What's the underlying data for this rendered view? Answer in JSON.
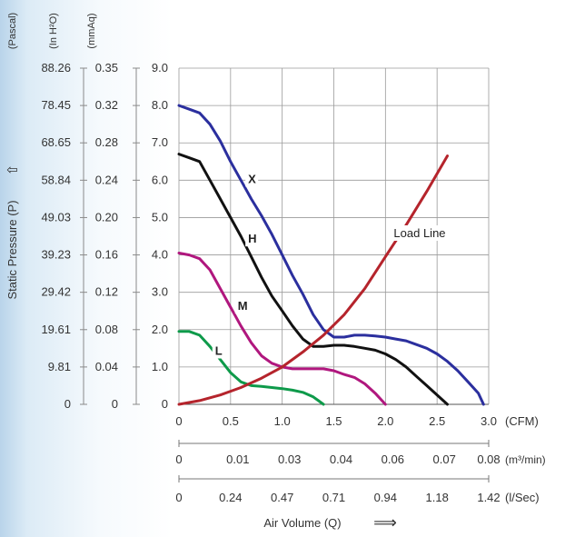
{
  "chart_data": {
    "type": "line",
    "title": "",
    "pressure_axes": [
      {
        "unit": "(Pascal)",
        "ticks": [
          "0",
          "9.81",
          "19.61",
          "29.42",
          "39.23",
          "49.03",
          "58.84",
          "68.65",
          "78.45",
          "88.26"
        ]
      },
      {
        "unit": "(In H²O)",
        "ticks": [
          "0",
          "0.04",
          "0.08",
          "0.12",
          "0.16",
          "0.20",
          "0.24",
          "0.28",
          "0.32",
          "0.35"
        ]
      },
      {
        "unit": "(mmAq)",
        "ticks": [
          "0",
          "1.0",
          "2.0",
          "3.0",
          "4.0",
          "5.0",
          "6.0",
          "7.0",
          "8.0",
          "9.0"
        ]
      }
    ],
    "ylabel": "Static Pressure (P)",
    "ylabel_arrow": "⇧",
    "ylim": [
      0,
      9
    ],
    "xlim": [
      0,
      3.0
    ],
    "flow_axes": [
      {
        "unit": "(CFM)",
        "ticks": [
          "0",
          "0.5",
          "1.0",
          "1.5",
          "2.0",
          "2.5",
          "3.0"
        ]
      },
      {
        "unit": "(m³/min)",
        "ticks": [
          "0",
          "0.01",
          "0.03",
          "0.04",
          "0.06",
          "0.07",
          "0.08"
        ]
      },
      {
        "unit": "(l/Sec)",
        "ticks": [
          "0",
          "0.24",
          "0.47",
          "0.71",
          "0.94",
          "1.18",
          "1.42"
        ]
      }
    ],
    "xlabel": "Air Volume (Q)",
    "xlabel_arrow": "⟹",
    "grid": true,
    "series": [
      {
        "name": "X",
        "color": "#2b2f9e",
        "x": [
          0,
          0.1,
          0.2,
          0.3,
          0.4,
          0.5,
          0.6,
          0.7,
          0.8,
          0.9,
          1.0,
          1.1,
          1.2,
          1.3,
          1.4,
          1.5,
          1.6,
          1.7,
          1.8,
          1.9,
          2.0,
          2.1,
          2.2,
          2.3,
          2.4,
          2.5,
          2.6,
          2.7,
          2.8,
          2.9,
          2.95
        ],
        "y": [
          8.0,
          7.9,
          7.8,
          7.5,
          7.05,
          6.5,
          6.0,
          5.5,
          5.05,
          4.55,
          4.0,
          3.45,
          2.95,
          2.4,
          2.0,
          1.8,
          1.8,
          1.85,
          1.85,
          1.83,
          1.8,
          1.75,
          1.7,
          1.6,
          1.5,
          1.35,
          1.15,
          0.9,
          0.6,
          0.3,
          0.0
        ]
      },
      {
        "name": "H",
        "color": "#111111",
        "x": [
          0,
          0.1,
          0.2,
          0.3,
          0.4,
          0.5,
          0.6,
          0.7,
          0.8,
          0.9,
          1.0,
          1.1,
          1.2,
          1.3,
          1.4,
          1.5,
          1.6,
          1.7,
          1.8,
          1.9,
          2.0,
          2.1,
          2.2,
          2.3,
          2.4,
          2.5,
          2.6
        ],
        "y": [
          6.7,
          6.6,
          6.5,
          6.0,
          5.5,
          5.0,
          4.5,
          3.95,
          3.4,
          2.9,
          2.5,
          2.1,
          1.75,
          1.55,
          1.55,
          1.58,
          1.58,
          1.55,
          1.5,
          1.45,
          1.35,
          1.2,
          1.0,
          0.75,
          0.5,
          0.25,
          0.0
        ]
      },
      {
        "name": "M",
        "color": "#b0177e",
        "x": [
          0,
          0.1,
          0.2,
          0.3,
          0.4,
          0.5,
          0.6,
          0.7,
          0.8,
          0.9,
          1.0,
          1.1,
          1.2,
          1.3,
          1.4,
          1.5,
          1.6,
          1.7,
          1.8,
          1.9,
          2.0
        ],
        "y": [
          4.05,
          4.0,
          3.9,
          3.6,
          3.1,
          2.6,
          2.1,
          1.65,
          1.3,
          1.1,
          1.0,
          0.95,
          0.95,
          0.95,
          0.95,
          0.9,
          0.8,
          0.72,
          0.55,
          0.3,
          0.0
        ]
      },
      {
        "name": "L",
        "color": "#0e9a4a",
        "x": [
          0,
          0.1,
          0.2,
          0.3,
          0.4,
          0.5,
          0.6,
          0.7,
          0.8,
          0.9,
          1.0,
          1.1,
          1.2,
          1.3,
          1.35,
          1.4
        ],
        "y": [
          1.95,
          1.95,
          1.85,
          1.55,
          1.2,
          0.85,
          0.6,
          0.5,
          0.48,
          0.45,
          0.42,
          0.38,
          0.32,
          0.2,
          0.1,
          0.0
        ]
      },
      {
        "name": "Load Line",
        "color": "#b5242c",
        "x": [
          0,
          0.2,
          0.4,
          0.6,
          0.8,
          1.0,
          1.2,
          1.4,
          1.6,
          1.8,
          2.0,
          2.2,
          2.4,
          2.6
        ],
        "y": [
          0.0,
          0.1,
          0.25,
          0.45,
          0.7,
          1.0,
          1.4,
          1.85,
          2.4,
          3.1,
          3.95,
          4.8,
          5.7,
          6.65
        ]
      }
    ],
    "curve_labels": [
      {
        "text": "X",
        "x": 0.67,
        "y": 5.95
      },
      {
        "text": "H",
        "x": 0.67,
        "y": 4.35
      },
      {
        "text": "M",
        "x": 0.57,
        "y": 2.55
      },
      {
        "text": "L",
        "x": 0.35,
        "y": 1.35
      },
      {
        "text": "Load Line",
        "x": 2.08,
        "y": 4.5
      }
    ]
  }
}
